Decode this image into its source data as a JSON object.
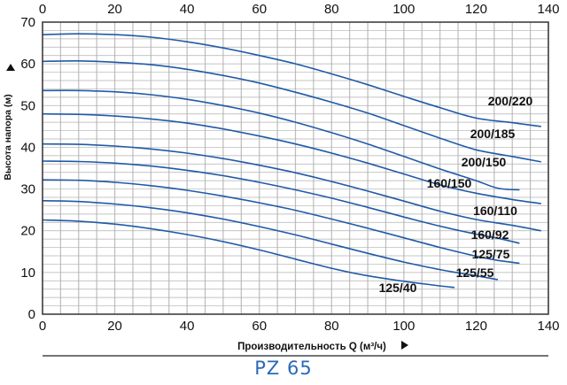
{
  "chart_data": {
    "type": "line",
    "title": "PZ 65",
    "xlabel": "Производительность Q (м³/ч)",
    "ylabel": "Высота напора (м)",
    "xlim": [
      0,
      140
    ],
    "ylim": [
      0,
      70
    ],
    "x_ticks": [
      0,
      20,
      40,
      60,
      80,
      100,
      120,
      140
    ],
    "y_ticks": [
      0,
      10,
      20,
      30,
      40,
      50,
      60,
      70
    ],
    "grid": true,
    "series": [
      {
        "name": "200/220",
        "points": [
          [
            0,
            67.0
          ],
          [
            10,
            67.2
          ],
          [
            20,
            67.0
          ],
          [
            30,
            66.4
          ],
          [
            40,
            65.3
          ],
          [
            50,
            63.8
          ],
          [
            60,
            62.0
          ],
          [
            70,
            60.0
          ],
          [
            80,
            57.6
          ],
          [
            90,
            55.0
          ],
          [
            100,
            52.2
          ],
          [
            110,
            49.5
          ],
          [
            120,
            47.0
          ],
          [
            130,
            45.9
          ],
          [
            138,
            45.0
          ]
        ]
      },
      {
        "name": "200/185",
        "points": [
          [
            0,
            60.6
          ],
          [
            10,
            60.7
          ],
          [
            20,
            60.4
          ],
          [
            30,
            59.8
          ],
          [
            40,
            58.7
          ],
          [
            50,
            57.2
          ],
          [
            60,
            55.4
          ],
          [
            70,
            53.2
          ],
          [
            80,
            50.8
          ],
          [
            90,
            48.2
          ],
          [
            100,
            45.2
          ],
          [
            110,
            42.2
          ],
          [
            120,
            39.4
          ],
          [
            130,
            37.8
          ],
          [
            138,
            36.5
          ]
        ]
      },
      {
        "name": "200/150",
        "points": [
          [
            0,
            53.6
          ],
          [
            10,
            53.6
          ],
          [
            20,
            53.3
          ],
          [
            30,
            52.6
          ],
          [
            40,
            51.5
          ],
          [
            50,
            50.0
          ],
          [
            60,
            48.2
          ],
          [
            70,
            46.0
          ],
          [
            80,
            43.5
          ],
          [
            90,
            40.8
          ],
          [
            100,
            37.8
          ],
          [
            110,
            34.8
          ],
          [
            120,
            32.0
          ],
          [
            126,
            30.2
          ],
          [
            132,
            29.8
          ]
        ]
      },
      {
        "name": "160/150",
        "points": [
          [
            0,
            48.0
          ],
          [
            10,
            47.9
          ],
          [
            20,
            47.5
          ],
          [
            30,
            46.8
          ],
          [
            40,
            45.8
          ],
          [
            50,
            44.4
          ],
          [
            60,
            42.7
          ],
          [
            70,
            40.8
          ],
          [
            80,
            38.6
          ],
          [
            90,
            36.2
          ],
          [
            100,
            33.6
          ],
          [
            110,
            31.0
          ],
          [
            120,
            29.0
          ],
          [
            130,
            27.5
          ],
          [
            138,
            26.5
          ]
        ]
      },
      {
        "name": "160/110",
        "points": [
          [
            0,
            40.8
          ],
          [
            10,
            40.7
          ],
          [
            20,
            40.3
          ],
          [
            30,
            39.6
          ],
          [
            40,
            38.6
          ],
          [
            50,
            37.3
          ],
          [
            60,
            35.7
          ],
          [
            70,
            33.9
          ],
          [
            80,
            31.8
          ],
          [
            90,
            29.5
          ],
          [
            100,
            27.1
          ],
          [
            110,
            24.7
          ],
          [
            120,
            22.7
          ],
          [
            130,
            21.3
          ],
          [
            138,
            20.0
          ]
        ]
      },
      {
        "name": "160/92",
        "points": [
          [
            0,
            36.7
          ],
          [
            10,
            36.6
          ],
          [
            20,
            36.2
          ],
          [
            30,
            35.5
          ],
          [
            40,
            34.5
          ],
          [
            50,
            33.2
          ],
          [
            60,
            31.6
          ],
          [
            70,
            29.8
          ],
          [
            80,
            27.8
          ],
          [
            90,
            25.6
          ],
          [
            100,
            23.3
          ],
          [
            110,
            21.1
          ],
          [
            120,
            19.2
          ],
          [
            126,
            18.2
          ],
          [
            132,
            17.0
          ]
        ]
      },
      {
        "name": "125/75",
        "points": [
          [
            0,
            32.2
          ],
          [
            10,
            32.1
          ],
          [
            20,
            31.6
          ],
          [
            30,
            30.8
          ],
          [
            40,
            29.7
          ],
          [
            50,
            28.3
          ],
          [
            60,
            26.7
          ],
          [
            70,
            24.9
          ],
          [
            80,
            22.8
          ],
          [
            90,
            20.6
          ],
          [
            100,
            18.3
          ],
          [
            110,
            16.0
          ],
          [
            120,
            13.9
          ],
          [
            126,
            12.9
          ],
          [
            132,
            12.2
          ]
        ]
      },
      {
        "name": "125/55",
        "points": [
          [
            0,
            27.2
          ],
          [
            10,
            27.0
          ],
          [
            20,
            26.4
          ],
          [
            30,
            25.5
          ],
          [
            40,
            24.3
          ],
          [
            50,
            22.8
          ],
          [
            60,
            21.0
          ],
          [
            70,
            19.0
          ],
          [
            80,
            16.8
          ],
          [
            90,
            14.6
          ],
          [
            100,
            12.5
          ],
          [
            110,
            10.7
          ],
          [
            120,
            9.2
          ],
          [
            126,
            8.3
          ]
        ]
      },
      {
        "name": "125/40",
        "points": [
          [
            0,
            22.6
          ],
          [
            10,
            22.3
          ],
          [
            20,
            21.6
          ],
          [
            30,
            20.5
          ],
          [
            40,
            19.1
          ],
          [
            50,
            17.4
          ],
          [
            60,
            15.4
          ],
          [
            70,
            13.2
          ],
          [
            80,
            11.0
          ],
          [
            90,
            9.2
          ],
          [
            100,
            7.9
          ],
          [
            108,
            7.0
          ],
          [
            114,
            6.4
          ]
        ]
      }
    ]
  }
}
